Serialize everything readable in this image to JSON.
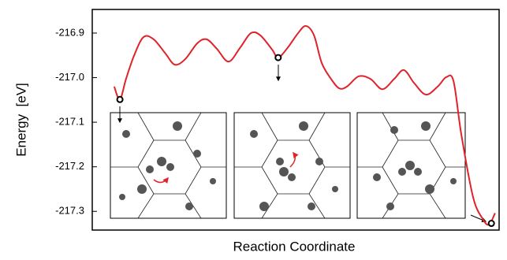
{
  "chart_data": {
    "type": "line",
    "xlabel": "Reaction Coordinate",
    "ylabel": "Energy  [eV]",
    "xlim": [
      0,
      100
    ],
    "ylim": [
      -217.342,
      -216.847
    ],
    "yticks": [
      {
        "value": -216.9,
        "label": "-216.9"
      },
      {
        "value": -217.0,
        "label": "-217.0"
      },
      {
        "value": -217.1,
        "label": "-217.1"
      },
      {
        "value": -217.2,
        "label": "-217.2"
      },
      {
        "value": -217.3,
        "label": "-217.3"
      }
    ],
    "series": [
      {
        "color": "#e0232a",
        "x": [
          5.4,
          6.8,
          8.3,
          10.3,
          12.6,
          15.1,
          18.0,
          20.3,
          22.9,
          25.8,
          28.1,
          30.6,
          33.5,
          36.4,
          39.0,
          41.3,
          44.2,
          45.7,
          48.1,
          50.6,
          52.5,
          54.5,
          56.4,
          58.7,
          60.7,
          62.6,
          65.5,
          68.4,
          71.3,
          74.2,
          76.6,
          79.1,
          82.0,
          84.9,
          87.0,
          88.8,
          90.7,
          93.6,
          95.9,
          97.5,
          99.0
        ],
        "values": [
          -217.02,
          -217.049,
          -217.003,
          -216.95,
          -216.909,
          -216.914,
          -216.946,
          -216.971,
          -216.958,
          -216.923,
          -216.914,
          -216.935,
          -216.964,
          -216.932,
          -216.9,
          -216.905,
          -216.937,
          -216.955,
          -216.932,
          -216.9,
          -216.884,
          -216.905,
          -216.967,
          -217.003,
          -217.024,
          -217.02,
          -216.997,
          -217.003,
          -217.026,
          -217.003,
          -216.983,
          -217.012,
          -217.038,
          -217.02,
          -216.999,
          -217.008,
          -217.127,
          -217.268,
          -217.316,
          -217.33,
          -217.304
        ]
      },
      {
        "color": "#000000",
        "markers_only": true,
        "x": [
          6.8,
          45.7,
          98.1
        ],
        "values": [
          -217.049,
          -216.955,
          -217.327
        ]
      }
    ]
  }
}
